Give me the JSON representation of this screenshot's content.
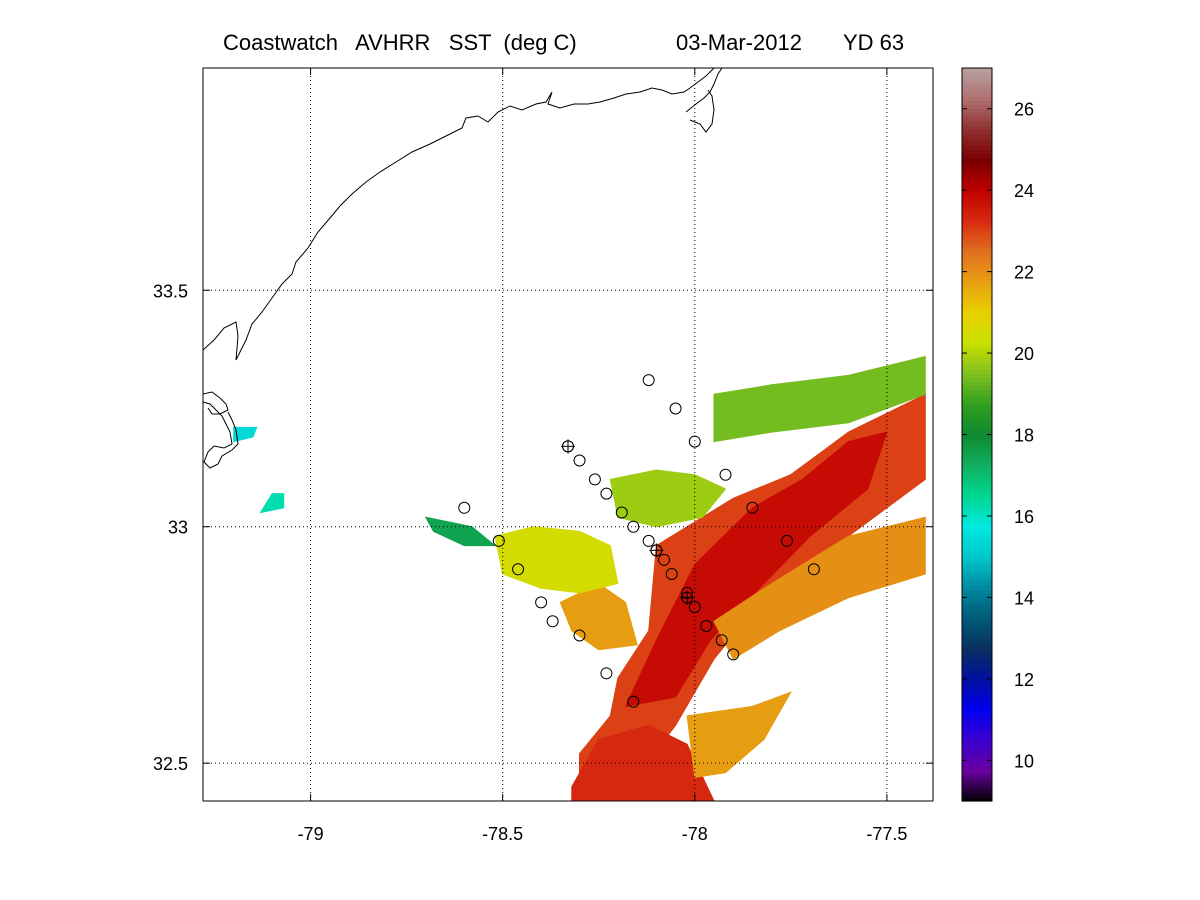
{
  "header": {
    "title": "Coastwatch   AVHRR   SST  (deg C)",
    "date": "03-Mar-2012",
    "yearday": "YD 63"
  },
  "chart_data": {
    "type": "heatmap",
    "title": "Coastwatch   AVHRR   SST  (deg C)",
    "date": "03-Mar-2012",
    "yearday": "YD 63",
    "xlabel": "",
    "ylabel": "",
    "x_ticks": [
      -79,
      -78.5,
      -78,
      -77.5
    ],
    "x_tick_labels": [
      "-79",
      "-78.5",
      "-78",
      "-77.5"
    ],
    "y_ticks": [
      32.5,
      33,
      33.5
    ],
    "y_tick_labels": [
      "32.5",
      "33",
      "33.5"
    ],
    "xlim": [
      -79.28,
      -77.38
    ],
    "ylim": [
      32.42,
      33.97
    ],
    "grid": true,
    "colorbar": {
      "range": [
        9,
        27
      ],
      "ticks": [
        10,
        12,
        14,
        16,
        18,
        20,
        22,
        24,
        26
      ],
      "tick_labels": [
        "10",
        "12",
        "14",
        "16",
        "18",
        "20",
        "22",
        "24",
        "26"
      ],
      "colors": [
        "#000000",
        "#6a00a0",
        "#3c00d0",
        "#0000f0",
        "#0010a0",
        "#0a3060",
        "#005a78",
        "#008aa0",
        "#00c8c8",
        "#00e8e0",
        "#00d890",
        "#10b060",
        "#108830",
        "#30a020",
        "#80c020",
        "#c8e000",
        "#e8d000",
        "#e8a010",
        "#e07020",
        "#d82a10",
        "#c00000",
        "#7a0000",
        "#903030",
        "#b07070",
        "#b8a0a0"
      ]
    },
    "sst_patches": [
      {
        "name": "gulf-stream-core",
        "sst_c": 23.0,
        "polygon": [
          [
            -78.1,
            32.96
          ],
          [
            -77.9,
            33.06
          ],
          [
            -77.75,
            33.11
          ],
          [
            -77.6,
            33.2
          ],
          [
            -77.4,
            33.28
          ],
          [
            -77.4,
            33.1
          ],
          [
            -77.65,
            32.95
          ],
          [
            -77.85,
            32.82
          ],
          [
            -77.95,
            32.72
          ],
          [
            -78.05,
            32.58
          ],
          [
            -78.2,
            32.42
          ],
          [
            -78.3,
            32.42
          ],
          [
            -78.3,
            32.52
          ],
          [
            -78.22,
            32.6
          ],
          [
            -78.2,
            32.68
          ],
          [
            -78.12,
            32.78
          ]
        ]
      },
      {
        "name": "gulf-stream-dark-core",
        "sst_c": 23.8,
        "polygon": [
          [
            -78.1,
            32.76
          ],
          [
            -78.0,
            32.92
          ],
          [
            -77.85,
            33.04
          ],
          [
            -77.72,
            33.1
          ],
          [
            -77.6,
            33.18
          ],
          [
            -77.5,
            33.2
          ],
          [
            -77.55,
            33.08
          ],
          [
            -77.7,
            32.98
          ],
          [
            -77.82,
            32.88
          ],
          [
            -77.96,
            32.76
          ],
          [
            -78.05,
            32.64
          ],
          [
            -78.18,
            32.62
          ]
        ]
      },
      {
        "name": "gulf-stream-south-tongue",
        "sst_c": 23.3,
        "polygon": [
          [
            -78.32,
            32.45
          ],
          [
            -78.25,
            32.55
          ],
          [
            -78.12,
            32.58
          ],
          [
            -78.02,
            32.54
          ],
          [
            -77.95,
            32.42
          ],
          [
            -78.32,
            32.42
          ]
        ]
      },
      {
        "name": "inner-front-orange",
        "sst_c": 21.8,
        "polygon": [
          [
            -78.35,
            32.84
          ],
          [
            -78.25,
            32.88
          ],
          [
            -78.18,
            32.84
          ],
          [
            -78.15,
            32.75
          ],
          [
            -78.25,
            32.74
          ],
          [
            -78.32,
            32.78
          ]
        ]
      },
      {
        "name": "eastern-branch-orange",
        "sst_c": 22.0,
        "polygon": [
          [
            -77.95,
            32.8
          ],
          [
            -77.8,
            32.88
          ],
          [
            -77.6,
            32.98
          ],
          [
            -77.4,
            33.02
          ],
          [
            -77.4,
            32.9
          ],
          [
            -77.6,
            32.85
          ],
          [
            -77.78,
            32.78
          ],
          [
            -77.9,
            32.72
          ]
        ]
      },
      {
        "name": "southern-orange-band",
        "sst_c": 21.8,
        "polygon": [
          [
            -78.02,
            32.6
          ],
          [
            -77.85,
            32.62
          ],
          [
            -77.75,
            32.65
          ],
          [
            -77.82,
            32.55
          ],
          [
            -77.92,
            32.48
          ],
          [
            -78.0,
            32.47
          ]
        ]
      },
      {
        "name": "shelf-yellow",
        "sst_c": 20.5,
        "polygon": [
          [
            -78.52,
            32.98
          ],
          [
            -78.42,
            33.0
          ],
          [
            -78.3,
            32.99
          ],
          [
            -78.22,
            32.96
          ],
          [
            -78.2,
            32.88
          ],
          [
            -78.3,
            32.86
          ],
          [
            -78.4,
            32.87
          ],
          [
            -78.5,
            32.9
          ]
        ]
      },
      {
        "name": "mid-shelf-yellow-green",
        "sst_c": 19.8,
        "polygon": [
          [
            -78.22,
            33.1
          ],
          [
            -78.1,
            33.12
          ],
          [
            -78.0,
            33.11
          ],
          [
            -77.92,
            33.08
          ],
          [
            -77.98,
            33.02
          ],
          [
            -78.1,
            33.0
          ],
          [
            -78.2,
            33.02
          ]
        ]
      },
      {
        "name": "outer-shelf-green",
        "sst_c": 19.4,
        "polygon": [
          [
            -77.95,
            33.28
          ],
          [
            -77.8,
            33.3
          ],
          [
            -77.6,
            33.32
          ],
          [
            -77.4,
            33.36
          ],
          [
            -77.4,
            33.28
          ],
          [
            -77.6,
            33.22
          ],
          [
            -77.8,
            33.2
          ],
          [
            -77.95,
            33.18
          ]
        ]
      },
      {
        "name": "cool-shelf-patch",
        "sst_c": 17.5,
        "polygon": [
          [
            -78.7,
            33.02
          ],
          [
            -78.58,
            33.0
          ],
          [
            -78.52,
            32.96
          ],
          [
            -78.6,
            32.96
          ],
          [
            -78.68,
            32.99
          ]
        ]
      },
      {
        "name": "nearshore-cyan",
        "sst_c": 15.4,
        "polygon": [
          [
            -79.2,
            33.21
          ],
          [
            -79.14,
            33.21
          ],
          [
            -79.15,
            33.19
          ],
          [
            -79.2,
            33.18
          ]
        ]
      },
      {
        "name": "coastal-cool-patch",
        "sst_c": 16.2,
        "polygon": [
          [
            -79.1,
            33.07
          ],
          [
            -79.07,
            33.07
          ],
          [
            -79.07,
            33.04
          ],
          [
            -79.13,
            33.03
          ]
        ]
      }
    ],
    "cruise_stations": {
      "lon": [
        -78.12,
        -78.05,
        -78.0,
        -77.92,
        -77.85,
        -77.76,
        -77.69,
        -78.6,
        -78.33,
        -78.3,
        -78.26,
        -78.23,
        -78.19,
        -78.16,
        -78.12,
        -78.1,
        -78.08,
        -78.06,
        -78.02,
        -78.0,
        -77.97,
        -77.93,
        -77.9,
        -78.51,
        -78.46,
        -78.4,
        -78.37,
        -78.3,
        -78.23,
        -78.16
      ],
      "lat": [
        33.31,
        33.25,
        33.18,
        33.11,
        33.04,
        32.97,
        32.91,
        33.04,
        33.17,
        33.14,
        33.1,
        33.07,
        33.03,
        33.0,
        32.97,
        32.95,
        32.93,
        32.9,
        32.86,
        32.83,
        32.79,
        32.76,
        32.73,
        32.97,
        32.91,
        32.84,
        32.8,
        32.77,
        32.69,
        32.63
      ]
    },
    "crossed_stations": {
      "lon": [
        -78.33,
        -78.1,
        -78.02
      ],
      "lat": [
        33.17,
        32.95,
        32.85
      ]
    }
  }
}
